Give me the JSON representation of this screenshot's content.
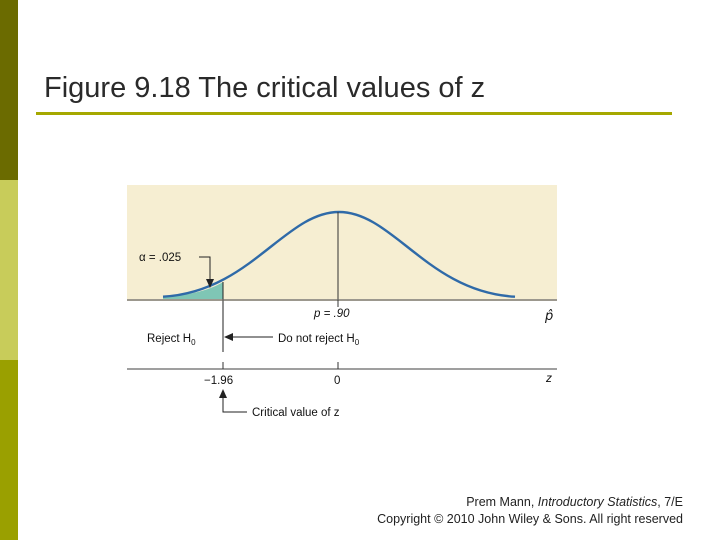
{
  "slide": {
    "title": "Figure 9.18  The critical values of z",
    "colors": {
      "sidebar_top": "#6b6b00",
      "sidebar_mid": "#c8cc5a",
      "sidebar_bottom": "#9aa000",
      "title_rule": "#a5a800",
      "figure_bg": "#f6eed2",
      "curve": "#2f6aa8",
      "tail_fill": "#7fc6b5"
    }
  },
  "figure": {
    "alpha_label": "α = .025",
    "p_label": "p = .90",
    "phat_axis_label": "p̂",
    "reject_label": "Reject H",
    "reject_sub": "0",
    "do_not_reject_label": "Do not reject H",
    "do_not_reject_sub": "0",
    "z_axis_label": "z",
    "tick_critical": "−1.96",
    "tick_zero": "0",
    "critical_value_label": "Critical value of z"
  },
  "footer": {
    "author": "Prem Mann, ",
    "book": "Introductory Statistics",
    "edition": ", 7/E",
    "copyright": "Copyright © 2010 John Wiley & Sons. All right reserved"
  }
}
